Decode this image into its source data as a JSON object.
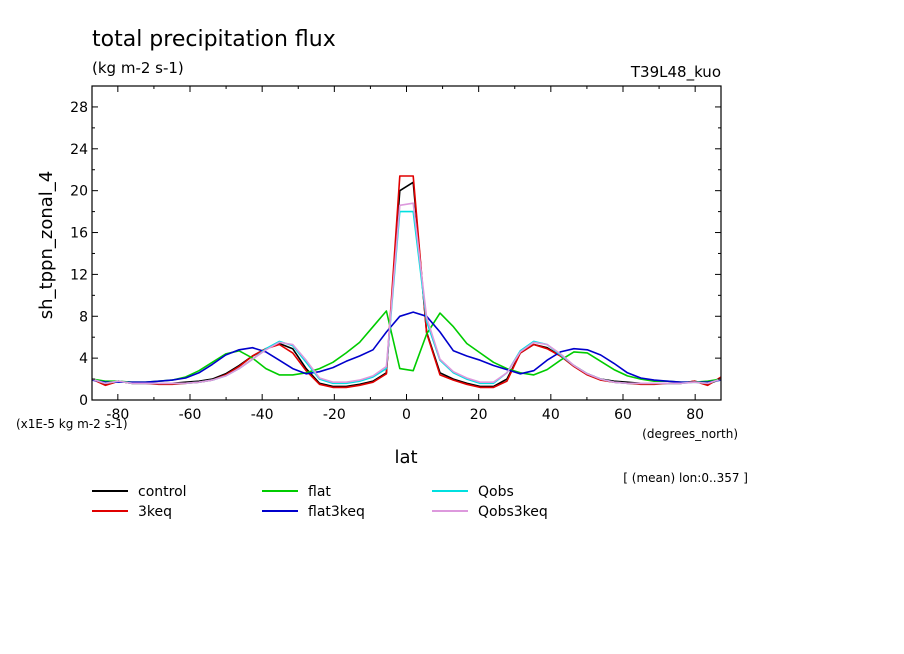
{
  "chart_data": {
    "type": "line",
    "title": "total precipitation flux",
    "subtitle": "(kg m-2 s-1)",
    "run_label": "T39L48_kuo",
    "ylabel": "sh_tppn_zonal_4",
    "y_scale_note": "(x1E-5 kg m-2 s-1)",
    "xlabel": "lat",
    "x_units": "(degrees_north)",
    "footer_note": "[ (mean) lon:0..357 ]",
    "xlim": [
      -87.16,
      87.16
    ],
    "ylim": [
      0,
      30
    ],
    "xticks": [
      -80,
      -60,
      -40,
      -20,
      0,
      20,
      40,
      60,
      80
    ],
    "xtick_labels": [
      "-80",
      "-60",
      "-40",
      "-20",
      "0",
      "20",
      "40",
      "60",
      "80"
    ],
    "yticks": [
      0,
      4,
      8,
      12,
      16,
      20,
      24,
      28
    ],
    "ytick_labels": [
      "0",
      "4",
      "8",
      "12",
      "16",
      "20",
      "24",
      "28"
    ],
    "grid": false,
    "legend_position": "bottom",
    "x": [
      -87.16,
      -83.48,
      -79.78,
      -76.07,
      -72.36,
      -68.65,
      -64.94,
      -61.23,
      -57.52,
      -53.81,
      -50.1,
      -46.39,
      -42.68,
      -38.97,
      -35.26,
      -31.54,
      -27.83,
      -24.12,
      -20.41,
      -16.7,
      -12.99,
      -9.28,
      -5.57,
      -1.86,
      1.86,
      5.57,
      9.28,
      12.99,
      16.7,
      20.41,
      24.12,
      27.83,
      31.54,
      35.26,
      38.97,
      42.68,
      46.39,
      50.1,
      53.81,
      57.52,
      61.23,
      64.94,
      68.65,
      72.36,
      76.07,
      79.78,
      83.48,
      87.16
    ],
    "series": [
      {
        "name": "control",
        "color": "#000000",
        "values": [
          2.0,
          1.5,
          1.8,
          1.6,
          1.6,
          1.6,
          1.6,
          1.7,
          1.8,
          2.0,
          2.5,
          3.3,
          4.2,
          4.9,
          5.4,
          4.9,
          3.0,
          1.6,
          1.3,
          1.3,
          1.5,
          1.8,
          2.6,
          20.0,
          20.8,
          6.5,
          2.6,
          2.0,
          1.6,
          1.3,
          1.3,
          2.0,
          4.5,
          5.3,
          5.0,
          4.2,
          3.3,
          2.5,
          2.0,
          1.8,
          1.7,
          1.6,
          1.6,
          1.6,
          1.6,
          1.8,
          1.5,
          2.0
        ]
      },
      {
        "name": "3keq",
        "color": "#e00000",
        "values": [
          2.0,
          1.4,
          1.8,
          1.6,
          1.6,
          1.5,
          1.5,
          1.6,
          1.7,
          1.9,
          2.4,
          3.2,
          4.2,
          4.9,
          5.3,
          4.5,
          2.8,
          1.5,
          1.2,
          1.2,
          1.4,
          1.7,
          2.5,
          21.4,
          21.4,
          6.4,
          2.4,
          1.9,
          1.5,
          1.2,
          1.2,
          1.8,
          4.5,
          5.3,
          4.9,
          4.2,
          3.2,
          2.4,
          1.9,
          1.7,
          1.6,
          1.5,
          1.5,
          1.6,
          1.6,
          1.8,
          1.4,
          2.2
        ]
      },
      {
        "name": "flat",
        "color": "#00cc00",
        "values": [
          2.0,
          1.8,
          1.8,
          1.7,
          1.7,
          1.8,
          1.9,
          2.2,
          2.8,
          3.6,
          4.4,
          4.7,
          4.0,
          3.0,
          2.4,
          2.4,
          2.6,
          3.0,
          3.6,
          4.5,
          5.5,
          7.0,
          8.5,
          3.0,
          2.8,
          6.3,
          8.3,
          7.0,
          5.4,
          4.5,
          3.6,
          3.0,
          2.6,
          2.4,
          2.9,
          3.8,
          4.6,
          4.5,
          3.7,
          2.9,
          2.3,
          2.0,
          1.8,
          1.8,
          1.7,
          1.7,
          1.8,
          2.0
        ]
      },
      {
        "name": "flat3keq",
        "color": "#0000cc",
        "values": [
          1.9,
          1.7,
          1.7,
          1.7,
          1.7,
          1.8,
          1.9,
          2.1,
          2.6,
          3.4,
          4.3,
          4.8,
          5.0,
          4.6,
          3.8,
          3.0,
          2.5,
          2.7,
          3.1,
          3.7,
          4.2,
          4.8,
          6.5,
          8.0,
          8.4,
          8.0,
          6.5,
          4.7,
          4.2,
          3.8,
          3.3,
          2.9,
          2.5,
          2.8,
          3.8,
          4.6,
          4.9,
          4.8,
          4.3,
          3.5,
          2.6,
          2.1,
          1.9,
          1.8,
          1.7,
          1.7,
          1.7,
          1.9
        ]
      },
      {
        "name": "Qobs",
        "color": "#00e0e0",
        "values": [
          2.0,
          1.6,
          1.8,
          1.6,
          1.6,
          1.6,
          1.6,
          1.6,
          1.7,
          1.9,
          2.3,
          3.0,
          3.9,
          4.9,
          5.6,
          5.2,
          3.6,
          2.0,
          1.6,
          1.6,
          1.8,
          2.2,
          3.0,
          18.0,
          18.0,
          7.5,
          3.8,
          2.6,
          2.0,
          1.6,
          1.6,
          2.6,
          4.7,
          5.6,
          5.3,
          4.3,
          3.3,
          2.5,
          2.0,
          1.7,
          1.6,
          1.6,
          1.6,
          1.6,
          1.6,
          1.7,
          1.6,
          2.0
        ]
      },
      {
        "name": "Qobs3keq",
        "color": "#dd99dd",
        "values": [
          2.0,
          1.6,
          1.8,
          1.6,
          1.6,
          1.6,
          1.6,
          1.6,
          1.7,
          1.9,
          2.3,
          3.0,
          3.9,
          4.8,
          5.5,
          5.3,
          3.8,
          2.1,
          1.7,
          1.7,
          1.9,
          2.3,
          3.2,
          18.6,
          18.8,
          7.9,
          3.9,
          2.7,
          2.1,
          1.7,
          1.7,
          2.6,
          4.6,
          5.5,
          5.3,
          4.4,
          3.3,
          2.5,
          2.0,
          1.7,
          1.6,
          1.6,
          1.6,
          1.6,
          1.6,
          1.7,
          1.6,
          2.0
        ]
      }
    ]
  }
}
